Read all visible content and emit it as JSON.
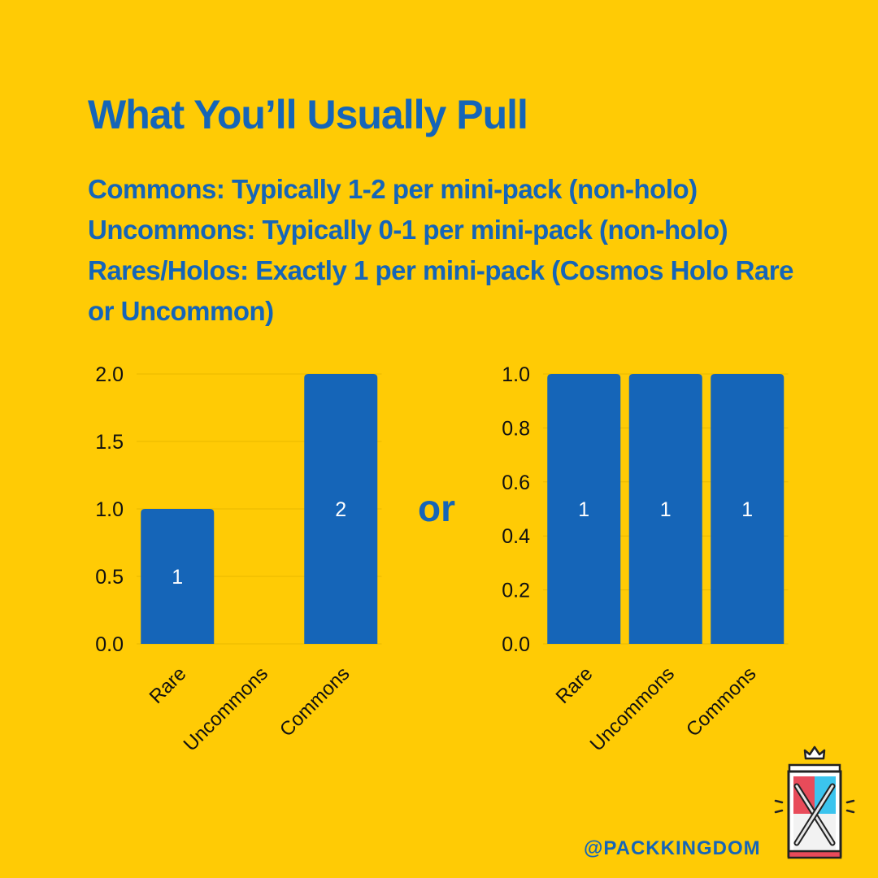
{
  "title": "What You’ll Usually Pull",
  "lines": [
    "Commons: Typically 1-2 per mini-pack (non-holo)",
    "Uncommons: Typically 0-1 per mini-pack (non-holo)",
    "Rares/Holos: Exactly 1 per mini-pack (Cosmos Holo Rare or Uncommon)"
  ],
  "separator": "or",
  "handle": "@PACKKINGDOM",
  "colors": {
    "background": "#FFCB05",
    "bar": "#1565B8",
    "text": "#1565B8"
  },
  "chart_data": [
    {
      "type": "bar",
      "categories": [
        "Rare",
        "Uncommons",
        "Commons"
      ],
      "values": [
        1,
        0,
        2
      ],
      "data_labels": [
        "1",
        "",
        "2"
      ],
      "ylim": [
        0,
        2.0
      ],
      "yticks": [
        "0.0",
        "0.5",
        "1.0",
        "1.5",
        "2.0"
      ],
      "title": "",
      "xlabel": "",
      "ylabel": ""
    },
    {
      "type": "bar",
      "categories": [
        "Rare",
        "Uncommons",
        "Commons"
      ],
      "values": [
        1,
        1,
        1
      ],
      "data_labels": [
        "1",
        "1",
        "1"
      ],
      "ylim": [
        0,
        1.0
      ],
      "yticks": [
        "0.0",
        "0.2",
        "0.4",
        "0.6",
        "0.8",
        "1.0"
      ],
      "title": "",
      "xlabel": "",
      "ylabel": ""
    }
  ]
}
